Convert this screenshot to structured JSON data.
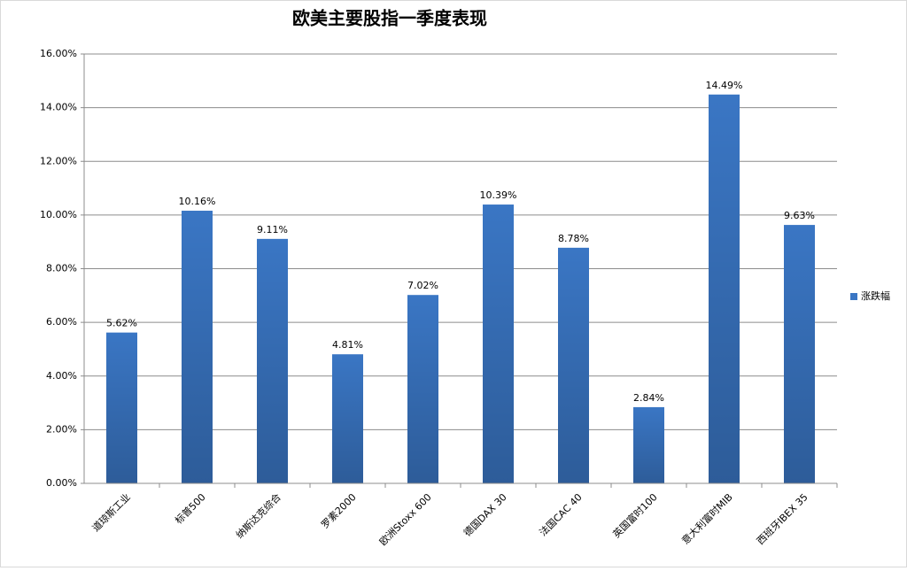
{
  "chart_data": {
    "type": "bar",
    "title": "欧美主要股指一季度表现",
    "categories": [
      "道琼斯工业",
      "标普500",
      "纳斯达克综合",
      "罗素2000",
      "欧洲Stoxx 600",
      "德国DAX 30",
      "法国CAC 40",
      "英国富时100",
      "意大利富时MIB",
      "西班牙IBEX 35"
    ],
    "series": [
      {
        "name": "涨跌幅",
        "color": "#3a76c4",
        "values": [
          5.62,
          10.16,
          9.11,
          4.81,
          7.02,
          10.39,
          8.78,
          2.84,
          14.49,
          9.63
        ],
        "value_labels": [
          "5.62%",
          "10.16%",
          "9.11%",
          "4.81%",
          "7.02%",
          "10.39%",
          "8.78%",
          "2.84%",
          "14.49%",
          "9.63%"
        ]
      }
    ],
    "ylim": [
      0,
      16
    ],
    "yticks": [
      {
        "value": 0,
        "label": "0.00%"
      },
      {
        "value": 2,
        "label": "2.00%"
      },
      {
        "value": 4,
        "label": "4.00%"
      },
      {
        "value": 6,
        "label": "6.00%"
      },
      {
        "value": 8,
        "label": "8.00%"
      },
      {
        "value": 10,
        "label": "10.00%"
      },
      {
        "value": 12,
        "label": "12.00%"
      },
      {
        "value": 14,
        "label": "14.00%"
      },
      {
        "value": 16,
        "label": "16.00%"
      }
    ],
    "grid": true,
    "legend": "right"
  }
}
